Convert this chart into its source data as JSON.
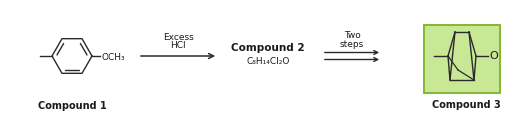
{
  "bg_color": "#ffffff",
  "compound1_label": "Compound 1",
  "compound2_label": "Compound 2",
  "compound3_label": "Compound 3",
  "arrow1_label_top": "Excess",
  "arrow1_label_mid": "HCl",
  "arrow2_label_top": "Two",
  "arrow2_label_mid": "steps",
  "molecular_formula": "C₈H₁₄Cl₂O",
  "och3_label": "OCH₃",
  "ketone_label": "O",
  "highlight_color": "#c8e896",
  "highlight_border": "#82b832",
  "structure_color": "#2a2a2a",
  "text_color": "#1a1a1a",
  "arrow_color": "#2a2a2a",
  "figsize": [
    5.29,
    1.18
  ],
  "dpi": 100
}
